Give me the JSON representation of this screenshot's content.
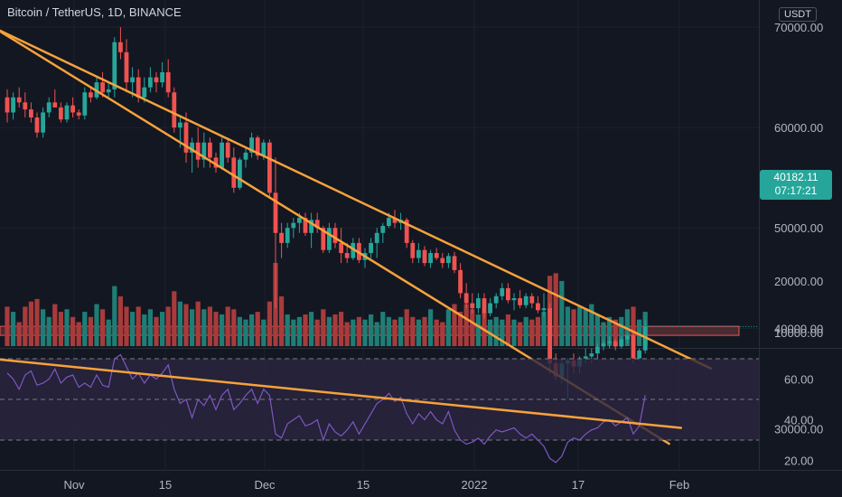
{
  "header": {
    "title": "Bitcoin / TetherUS, 1D, BINANCE",
    "currency": "USDT"
  },
  "price_badge": {
    "price": "40182.11",
    "countdown": "07:17:21"
  },
  "colors": {
    "background": "#131722",
    "up": "#26a69a",
    "down": "#ef5350",
    "trendline": "#f7a23b",
    "rsi_line": "#7e57c2",
    "rsi_band": "#2a2540",
    "zone_fill": "#4a2a33",
    "zone_stroke": "#ef5350"
  },
  "chart_data": [
    {
      "type": "candlestick",
      "title": "Bitcoin / TetherUS, 1D, BINANCE",
      "x_ticks": [
        "Nov",
        "15",
        "Dec",
        "15",
        "2022",
        "17",
        "Feb"
      ],
      "y_ticks": [
        "70000.00",
        "60000.00",
        "50000.00",
        "40000.00",
        "30000.00"
      ],
      "ylim": [
        26000,
        72000
      ],
      "resistance_zone": [
        39300,
        40200
      ],
      "trendlines": [
        {
          "from": [
            -6,
            71000
          ],
          "to": [
            118,
            36000
          ]
        },
        {
          "from": [
            -1,
            69500
          ],
          "to": [
            111,
            28500
          ]
        }
      ],
      "candles": [
        [
          63000,
          63800,
          60500,
          61500
        ],
        [
          61500,
          63500,
          60800,
          63000
        ],
        [
          63000,
          64000,
          62000,
          62500
        ],
        [
          62500,
          63500,
          61000,
          61800
        ],
        [
          61800,
          62500,
          60500,
          61000
        ],
        [
          61000,
          61500,
          59000,
          59500
        ],
        [
          59500,
          62000,
          59000,
          61500
        ],
        [
          61500,
          63000,
          61000,
          62500
        ],
        [
          62500,
          63800,
          62000,
          62000
        ],
        [
          62000,
          62500,
          60500,
          60800
        ],
        [
          60800,
          62500,
          60500,
          62200
        ],
        [
          62200,
          63000,
          61000,
          61500
        ],
        [
          61500,
          61800,
          60800,
          61200
        ],
        [
          61200,
          64000,
          60800,
          63500
        ],
        [
          63500,
          64000,
          62500,
          63000
        ],
        [
          63000,
          65000,
          62800,
          64500
        ],
        [
          64500,
          65500,
          63000,
          63500
        ],
        [
          63500,
          64500,
          62800,
          63800
        ],
        [
          63800,
          69000,
          63000,
          68500
        ],
        [
          68500,
          70000,
          66800,
          67500
        ],
        [
          67500,
          68800,
          63500,
          64500
        ],
        [
          64500,
          66000,
          63000,
          65000
        ],
        [
          65000,
          65800,
          62500,
          63000
        ],
        [
          63000,
          65000,
          62500,
          64000
        ],
        [
          64000,
          66000,
          63500,
          65000
        ],
        [
          65000,
          65500,
          63500,
          64500
        ],
        [
          64500,
          66500,
          64000,
          65500
        ],
        [
          65500,
          66800,
          63000,
          63500
        ],
        [
          63500,
          64000,
          59500,
          60000
        ],
        [
          60000,
          61000,
          58000,
          60500
        ],
        [
          60500,
          61500,
          56500,
          57500
        ],
        [
          57500,
          59000,
          55500,
          58500
        ],
        [
          58500,
          60000,
          56000,
          56800
        ],
        [
          56800,
          59500,
          56000,
          58500
        ],
        [
          58500,
          59000,
          56000,
          57000
        ],
        [
          57000,
          57500,
          55500,
          56000
        ],
        [
          56000,
          59000,
          55800,
          58500
        ],
        [
          58500,
          59000,
          56500,
          57000
        ],
        [
          57000,
          58000,
          53500,
          54000
        ],
        [
          54000,
          57000,
          53800,
          56800
        ],
        [
          56800,
          58000,
          56000,
          57500
        ],
        [
          57500,
          59500,
          57000,
          59000
        ],
        [
          59000,
          59200,
          56800,
          57200
        ],
        [
          57200,
          58800,
          56800,
          58500
        ],
        [
          58500,
          58800,
          53000,
          53500
        ],
        [
          53500,
          57000,
          42000,
          49500
        ],
        [
          49500,
          50500,
          47000,
          48500
        ],
        [
          48500,
          50500,
          48000,
          50000
        ],
        [
          50000,
          51000,
          49000,
          50500
        ],
        [
          50500,
          51500,
          49500,
          51000
        ],
        [
          51000,
          51500,
          49200,
          49500
        ],
        [
          49500,
          51500,
          48000,
          50800
        ],
        [
          50800,
          51500,
          49500,
          50000
        ],
        [
          50000,
          50200,
          47500,
          47800
        ],
        [
          47800,
          50500,
          47500,
          50000
        ],
        [
          50000,
          50500,
          48000,
          48500
        ],
        [
          48500,
          50000,
          46500,
          47500
        ],
        [
          47500,
          48500,
          46500,
          47000
        ],
        [
          47000,
          49000,
          46800,
          48500
        ],
        [
          48500,
          49000,
          46500,
          46800
        ],
        [
          46800,
          48000,
          46000,
          47500
        ],
        [
          47500,
          49000,
          47000,
          48500
        ],
        [
          48500,
          50000,
          47000,
          49500
        ],
        [
          49500,
          50500,
          48500,
          50200
        ],
        [
          50200,
          51500,
          50000,
          51000
        ],
        [
          51000,
          51800,
          50000,
          50500
        ],
        [
          50500,
          51500,
          49800,
          50800
        ],
        [
          50800,
          51000,
          48000,
          48500
        ],
        [
          48500,
          48800,
          46500,
          47000
        ],
        [
          47000,
          48500,
          46500,
          47800
        ],
        [
          47800,
          48200,
          46200,
          46500
        ],
        [
          46500,
          47800,
          46000,
          47500
        ],
        [
          47500,
          48000,
          46800,
          47000
        ],
        [
          47000,
          47500,
          46000,
          46500
        ],
        [
          46500,
          47500,
          46000,
          47200
        ],
        [
          47200,
          47600,
          45500,
          45800
        ],
        [
          45800,
          46500,
          43000,
          43500
        ],
        [
          43500,
          44500,
          42000,
          42500
        ],
        [
          42500,
          43500,
          41500,
          42000
        ],
        [
          42000,
          43500,
          41500,
          43000
        ],
        [
          43000,
          43500,
          41000,
          41500
        ],
        [
          41500,
          43000,
          41200,
          42500
        ],
        [
          42500,
          43500,
          42000,
          43200
        ],
        [
          43200,
          44500,
          42800,
          44000
        ],
        [
          44000,
          44500,
          42500,
          42800
        ],
        [
          42800,
          43500,
          41800,
          43000
        ],
        [
          43000,
          43800,
          42000,
          42300
        ],
        [
          42300,
          43500,
          42000,
          43200
        ],
        [
          43200,
          43500,
          42000,
          42500
        ],
        [
          42500,
          43200,
          41500,
          41800
        ],
        [
          41800,
          43500,
          41200,
          42000
        ],
        [
          42000,
          42500,
          35500,
          36500
        ],
        [
          36500,
          37500,
          34800,
          35200
        ],
        [
          35200,
          37000,
          34500,
          36500
        ],
        [
          36500,
          37000,
          33000,
          36800
        ],
        [
          36800,
          37500,
          35500,
          36200
        ],
        [
          36200,
          37200,
          35500,
          37000
        ],
        [
          37000,
          38000,
          36500,
          37200
        ],
        [
          37200,
          38000,
          36500,
          37500
        ],
        [
          37500,
          38500,
          37000,
          38200
        ],
        [
          38200,
          38800,
          37800,
          38500
        ],
        [
          38500,
          39200,
          38000,
          38700
        ],
        [
          38700,
          38900,
          37800,
          38200
        ],
        [
          38200,
          39200,
          38000,
          38900
        ],
        [
          38900,
          39500,
          38500,
          39300
        ],
        [
          39300,
          39600,
          36500,
          37000
        ],
        [
          37000,
          38000,
          36800,
          37800
        ],
        [
          37800,
          40800,
          37500,
          40180
        ]
      ],
      "volume": [
        15000,
        14000,
        12000,
        15000,
        16000,
        16500,
        14500,
        13000,
        15500,
        14000,
        14500,
        13000,
        12000,
        14000,
        13000,
        15500,
        14500,
        12500,
        19000,
        17000,
        15000,
        14000,
        15000,
        13500,
        14500,
        13000,
        14000,
        15000,
        18000,
        16000,
        15500,
        14500,
        16000,
        14500,
        15000,
        14000,
        13500,
        15000,
        14500,
        13000,
        12500,
        13500,
        14000,
        12500,
        16000,
        23500,
        17000,
        13500,
        12500,
        13000,
        13500,
        14000,
        12500,
        14500,
        13000,
        13500,
        14000,
        12000,
        12500,
        13000,
        12500,
        13500,
        12000,
        14000,
        13000,
        12500,
        13000,
        14500,
        13000,
        12500,
        13000,
        14500,
        12500,
        12000,
        14500,
        15500,
        14000,
        15500,
        14500,
        13500,
        14000,
        12500,
        13000,
        12500,
        13500,
        12500,
        12000,
        13000,
        12500,
        13000,
        14000,
        21000,
        21500,
        20000,
        15000,
        14500,
        15000,
        14500,
        15500,
        13500,
        12000,
        13000,
        12500,
        13000,
        14500,
        15000,
        12500,
        14000
      ],
      "volume_axis_ticks": [
        "20000.00",
        "10000.00"
      ],
      "volume_ylim": [
        7000,
        26000
      ],
      "rsi": [
        63,
        60,
        55,
        62,
        64,
        57,
        58,
        60,
        65,
        58,
        61,
        62,
        56,
        58,
        56,
        62,
        57,
        56,
        70,
        72,
        66,
        60,
        63,
        58,
        62,
        60,
        63,
        67,
        55,
        48,
        50,
        41,
        50,
        47,
        52,
        45,
        52,
        55,
        45,
        48,
        52,
        55,
        48,
        55,
        52,
        33,
        31,
        38,
        40,
        42,
        37,
        38,
        40,
        30,
        38,
        34,
        32,
        35,
        39,
        33,
        38,
        43,
        48,
        50,
        53,
        49,
        51,
        43,
        38,
        43,
        40,
        44,
        40,
        38,
        44,
        35,
        30,
        28,
        29,
        31,
        28,
        32,
        35,
        34,
        35,
        36,
        33,
        31,
        33,
        30,
        27,
        21,
        19,
        22,
        29,
        31,
        30,
        33,
        35,
        36,
        39,
        40,
        37,
        39,
        41,
        33,
        37,
        52
      ],
      "rsi_ticks": [
        "60.00",
        "40.00",
        "20.00"
      ],
      "rsi_ylim": [
        14,
        76
      ],
      "rsi_levels": [
        70,
        50,
        30
      ],
      "rsi_trendline": {
        "from": [
          -6,
          71
        ],
        "to": [
          113,
          36
        ]
      }
    }
  ]
}
